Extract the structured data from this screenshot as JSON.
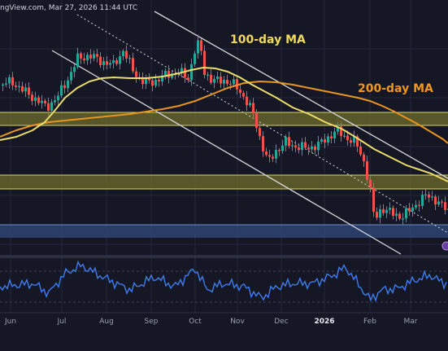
{
  "header": {
    "source_text": "ngView.com, Mar 27, 2026 11:44 UTC"
  },
  "chart_data": {
    "type": "candlestick",
    "time_labels": [
      "Jun",
      "Jul",
      "Aug",
      "Sep",
      "Oct",
      "Nov",
      "Dec",
      "2026",
      "Feb",
      "Mar"
    ],
    "annotations": [
      "100-day MA",
      "200-day MA"
    ],
    "ma_lines": [
      {
        "name": "100-day MA",
        "color": "#ecdc6a"
      },
      {
        "name": "200-day MA",
        "color": "#e8951f"
      }
    ],
    "candle_colors": {
      "up": "#26a69a",
      "down": "#ef5350"
    },
    "zones": [
      {
        "kind": "resistance",
        "color": "#a8a332"
      },
      {
        "kind": "resistance",
        "color": "#a8a332"
      },
      {
        "kind": "support",
        "color": "#3a5d9c"
      }
    ],
    "channel_lines": [
      "upper",
      "lower",
      "mid-dotted"
    ],
    "indicator": {
      "type": "RSI",
      "color": "#3d7cf0"
    },
    "grid": true
  }
}
